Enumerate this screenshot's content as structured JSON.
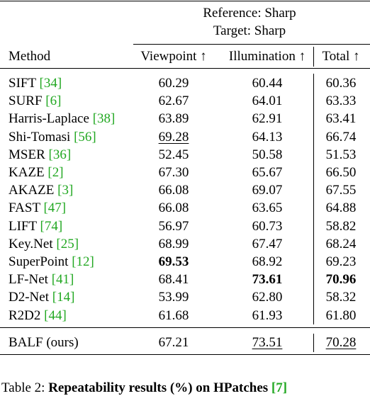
{
  "table": {
    "group_header": [
      "Reference: Sharp",
      "Target: Sharp"
    ],
    "columns": [
      "Method",
      "Viewpoint ↑",
      "Illumination ↑",
      "Total ↑"
    ],
    "rows": [
      {
        "method": "SIFT",
        "ref": "34",
        "values": [
          "60.29",
          "60.44",
          "60.36"
        ]
      },
      {
        "method": "SURF",
        "ref": "6",
        "values": [
          "62.67",
          "64.01",
          "63.33"
        ]
      },
      {
        "method": "Harris-Laplace",
        "ref": "38",
        "values": [
          "63.89",
          "62.91",
          "63.41"
        ]
      },
      {
        "method": "Shi-Tomasi",
        "ref": "56",
        "values": [
          "69.28",
          "64.13",
          "66.74"
        ],
        "underline": [
          0
        ]
      },
      {
        "method": "MSER",
        "ref": "36",
        "values": [
          "52.45",
          "50.58",
          "51.53"
        ]
      },
      {
        "method": "KAZE",
        "ref": "2",
        "values": [
          "67.30",
          "65.67",
          "66.50"
        ]
      },
      {
        "method": "AKAZE",
        "ref": "3",
        "values": [
          "66.08",
          "69.07",
          "67.55"
        ]
      },
      {
        "method": "FAST",
        "ref": "47",
        "values": [
          "66.08",
          "63.65",
          "64.88"
        ]
      },
      {
        "method": "LIFT",
        "ref": "74",
        "values": [
          "56.97",
          "60.73",
          "58.82"
        ]
      },
      {
        "method": "Key.Net",
        "ref": "25",
        "values": [
          "68.99",
          "67.47",
          "68.24"
        ]
      },
      {
        "method": "SuperPoint",
        "ref": "12",
        "values": [
          "69.53",
          "68.92",
          "69.23"
        ],
        "bold": [
          0
        ]
      },
      {
        "method": "LF-Net",
        "ref": "41",
        "values": [
          "68.41",
          "73.61",
          "70.96"
        ],
        "bold": [
          1,
          2
        ]
      },
      {
        "method": "D2-Net",
        "ref": "14",
        "values": [
          "53.99",
          "62.80",
          "58.32"
        ]
      },
      {
        "method": "R2D2",
        "ref": "44",
        "values": [
          "61.68",
          "61.93",
          "61.80"
        ]
      }
    ],
    "final_row": {
      "method": "BALF (ours)",
      "values": [
        "67.21",
        "73.51",
        "70.28"
      ],
      "underline": [
        1,
        2
      ]
    }
  },
  "caption": {
    "label": "Table 2:",
    "text": "Repeatability results (%) on HPatches",
    "ref": "7"
  }
}
